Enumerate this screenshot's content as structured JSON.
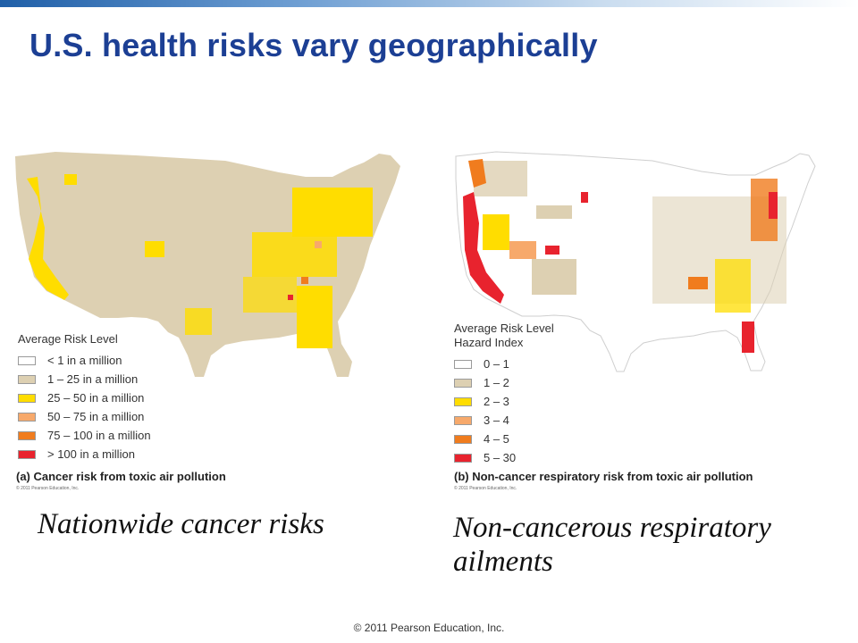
{
  "slide": {
    "title": "U.S. health risks vary geographically",
    "footer": "© 2011 Pearson Education, Inc."
  },
  "panel_a": {
    "legend_title": "Average Risk Level",
    "legend_items": [
      {
        "label": "< 1 in a million",
        "color": "#ffffff"
      },
      {
        "label": "1 – 25 in a million",
        "color": "#ddd0b2"
      },
      {
        "label": "25 – 50 in a million",
        "color": "#ffdd00"
      },
      {
        "label": "50 – 75 in a million",
        "color": "#f7a96b"
      },
      {
        "label": "75 – 100 in a million",
        "color": "#f07c1e"
      },
      {
        "label": "> 100 in a million",
        "color": "#e8232e"
      }
    ],
    "caption": "(a) Cancer risk from toxic air pollution",
    "figure_copyright": "© 2011 Pearson Education, Inc.",
    "subtitle": "Nationwide cancer risks"
  },
  "panel_b": {
    "legend_title_line1": "Average Risk Level",
    "legend_title_line2": "Hazard Index",
    "legend_items": [
      {
        "label": "0 – 1",
        "color": "#ffffff"
      },
      {
        "label": "1 – 2",
        "color": "#ddd0b2"
      },
      {
        "label": "2 – 3",
        "color": "#ffdd00"
      },
      {
        "label": "3 – 4",
        "color": "#f7a96b"
      },
      {
        "label": "4 – 5",
        "color": "#f07c1e"
      },
      {
        "label": "5 – 30",
        "color": "#e8232e"
      }
    ],
    "caption": "(b) Non-cancer respiratory risk from toxic air pollution",
    "figure_copyright": "© 2011 Pearson Education, Inc.",
    "subtitle": "Non-cancerous respiratory ailments"
  }
}
